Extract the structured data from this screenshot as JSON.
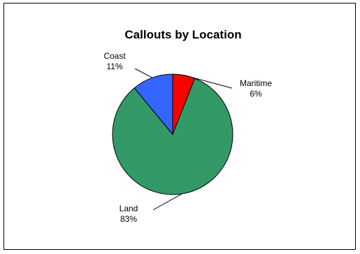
{
  "chart_data": {
    "type": "pie",
    "title": "Callouts by Location",
    "slices": [
      {
        "label": "Maritime",
        "value": 6,
        "display": "6%",
        "color": "#ff0000"
      },
      {
        "label": "Land",
        "value": 83,
        "display": "83%",
        "color": "#339966"
      },
      {
        "label": "Coast",
        "value": 11,
        "display": "11%",
        "color": "#3366ff"
      }
    ],
    "start_angle_deg": 0,
    "direction": "clockwise",
    "legend": "none",
    "border_color": "#000000"
  }
}
